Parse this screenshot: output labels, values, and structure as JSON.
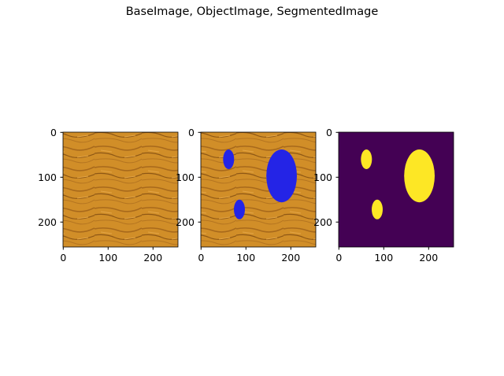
{
  "figure": {
    "title": "BaseImage, ObjectImage, SegmentedImage"
  },
  "panels": [
    {
      "content": "wood-grain texture",
      "x_ticks": [
        "0",
        "100",
        "200"
      ],
      "y_ticks": [
        "0",
        "100",
        "200"
      ]
    },
    {
      "content": "wood-grain texture with three blue ellipses",
      "x_ticks": [
        "0",
        "100",
        "200"
      ],
      "y_ticks": [
        "0",
        "100",
        "200"
      ]
    },
    {
      "content": "binary mask: yellow ellipses on purple",
      "x_ticks": [
        "0",
        "100",
        "200"
      ],
      "y_ticks": [
        "0",
        "100",
        "200"
      ]
    }
  ],
  "image_extent": [
    0,
    256
  ],
  "objects": [
    {
      "cx": 62,
      "cy": 60,
      "rx": 12,
      "ry": 22
    },
    {
      "cx": 86,
      "cy": 172,
      "rx": 12,
      "ry": 22
    },
    {
      "cx": 180,
      "cy": 96,
      "rx": 34,
      "ry": 59
    }
  ],
  "colors": {
    "wood": "#d08d25",
    "object": "#2424e6",
    "mask_bg": "#440154",
    "mask_fg": "#fde725"
  }
}
